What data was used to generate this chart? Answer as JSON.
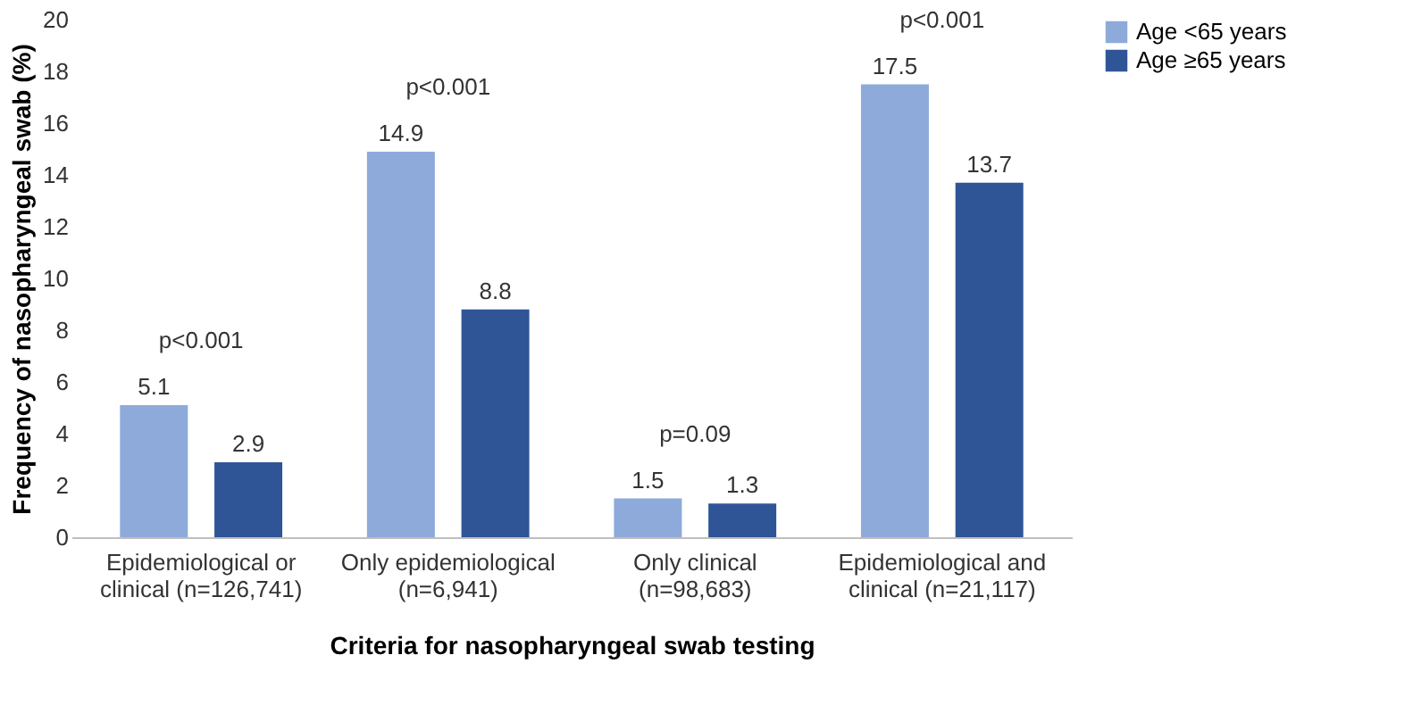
{
  "chart_data": {
    "type": "bar",
    "xlabel": "Criteria for nasopharyngeal swab testing",
    "ylabel": "Frequency of nasopharyngeal swab (%)",
    "categories": [
      "Epidemiological or\nclinical (n=126,741)",
      "Only epidemiological\n(n=6,941)",
      "Only clinical\n(n=98,683)",
      "Epidemiological and\nclinical (n=21,117)"
    ],
    "series": [
      {
        "name": "Age <65 years",
        "color": "#8eaadb",
        "values": [
          5.1,
          14.9,
          1.5,
          17.5
        ]
      },
      {
        "name": "Age ≥65 years",
        "color": "#2f5597",
        "values": [
          2.9,
          8.8,
          1.3,
          13.7
        ]
      }
    ],
    "ylim": [
      0,
      20
    ],
    "yticks": [
      0,
      2,
      4,
      6,
      8,
      10,
      12,
      14,
      16,
      18,
      20
    ],
    "grid": false,
    "legend": "top right",
    "data_labels": true,
    "annotations": [
      "p<0.001",
      "p<0.001",
      "p=0.09",
      "p<0.001"
    ]
  }
}
